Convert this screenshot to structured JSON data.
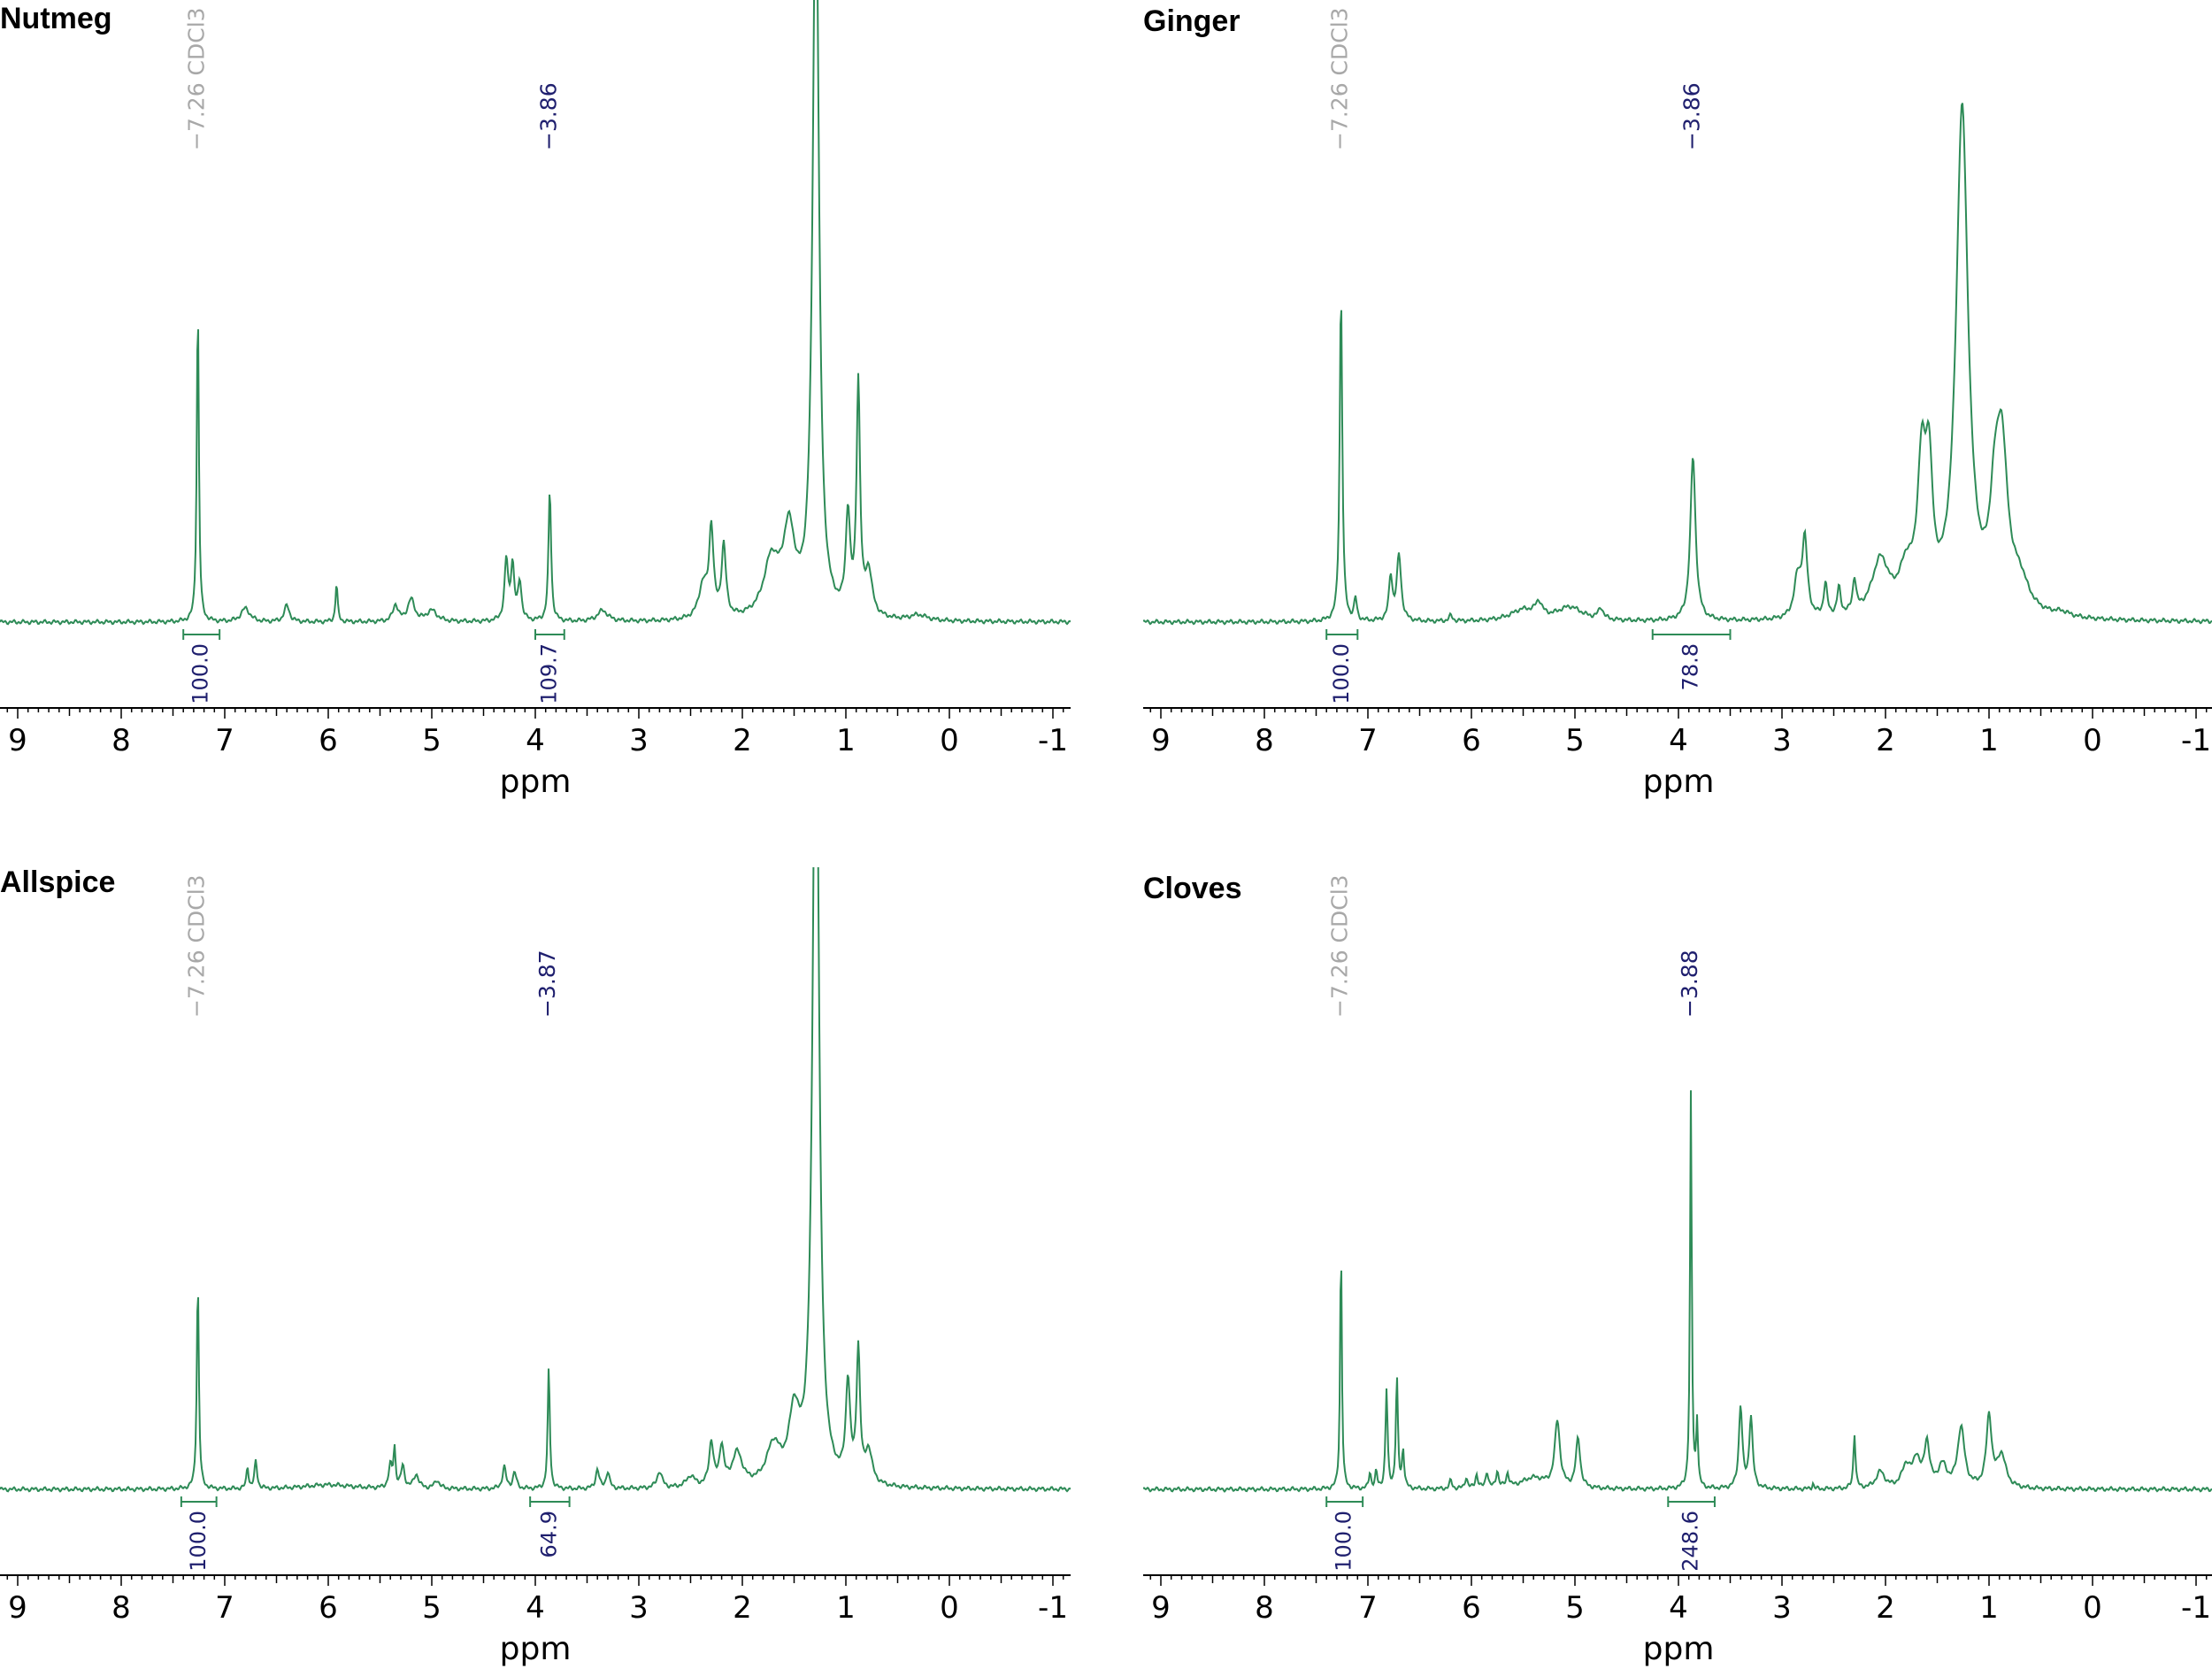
{
  "colors": {
    "spectrum": "#2e8b57",
    "integral": "#2e8b57",
    "peak_label": "#1f1f6e",
    "solvent_label": "#a8a8a8",
    "axis": "#000000"
  },
  "chart_data": [
    {
      "type": "line",
      "title": "Nutmeg",
      "xlabel": "ppm",
      "ylabel": "",
      "xlim": [
        9.2,
        -1.2
      ],
      "x_reversed": true,
      "xticks": [
        9,
        8,
        7,
        6,
        5,
        4,
        3,
        2,
        1,
        0,
        -1
      ],
      "peak_labels": [
        {
          "ppm": 7.26,
          "text": "−7.26 CDCl3",
          "kind": "solvent"
        },
        {
          "ppm": 3.86,
          "text": "−3.86",
          "kind": "peak"
        }
      ],
      "integrals": [
        {
          "from": 7.4,
          "to": 7.05,
          "value": "100.0"
        },
        {
          "from": 4.0,
          "to": 3.72,
          "value": "109.7"
        }
      ],
      "series": [
        {
          "peaks": [
            {
              "ppm": 7.26,
              "h": 0.58,
              "w": 0.012
            },
            {
              "ppm": 6.8,
              "h": 0.025,
              "w": 0.05
            },
            {
              "ppm": 6.4,
              "h": 0.03,
              "w": 0.03
            },
            {
              "ppm": 5.92,
              "h": 0.07,
              "w": 0.012
            },
            {
              "ppm": 5.35,
              "h": 0.03,
              "w": 0.03
            },
            {
              "ppm": 5.2,
              "h": 0.04,
              "w": 0.04
            },
            {
              "ppm": 5.0,
              "h": 0.02,
              "w": 0.06
            },
            {
              "ppm": 4.28,
              "h": 0.11,
              "w": 0.02
            },
            {
              "ppm": 4.22,
              "h": 0.1,
              "w": 0.02
            },
            {
              "ppm": 4.15,
              "h": 0.07,
              "w": 0.02
            },
            {
              "ppm": 3.86,
              "h": 0.24,
              "w": 0.015
            },
            {
              "ppm": 3.35,
              "h": 0.02,
              "w": 0.06
            },
            {
              "ppm": 2.38,
              "h": 0.06,
              "w": 0.05
            },
            {
              "ppm": 2.3,
              "h": 0.16,
              "w": 0.025
            },
            {
              "ppm": 2.18,
              "h": 0.13,
              "w": 0.025
            },
            {
              "ppm": 1.72,
              "h": 0.1,
              "w": 0.09
            },
            {
              "ppm": 1.55,
              "h": 0.15,
              "w": 0.07
            },
            {
              "ppm": 1.29,
              "h": 1.4,
              "w": 0.035
            },
            {
              "ppm": 0.98,
              "h": 0.18,
              "w": 0.025
            },
            {
              "ppm": 0.88,
              "h": 0.42,
              "w": 0.02
            },
            {
              "ppm": 0.78,
              "h": 0.08,
              "w": 0.04
            },
            {
              "ppm": 0.3,
              "h": 0.01,
              "w": 0.1
            }
          ]
        }
      ]
    },
    {
      "type": "line",
      "title": "Ginger",
      "xlabel": "ppm",
      "ylabel": "",
      "xlim": [
        9.2,
        -1.2
      ],
      "x_reversed": true,
      "xticks": [
        9,
        8,
        7,
        6,
        5,
        4,
        3,
        2,
        1,
        0,
        -1
      ],
      "peak_labels": [
        {
          "ppm": 7.26,
          "text": "−7.26 CDCl3",
          "kind": "solvent"
        },
        {
          "ppm": 3.86,
          "text": "−3.86",
          "kind": "peak"
        }
      ],
      "integrals": [
        {
          "from": 7.4,
          "to": 7.1,
          "value": "100.0"
        },
        {
          "from": 4.25,
          "to": 3.5,
          "value": "78.8"
        }
      ],
      "series": [
        {
          "peaks": [
            {
              "ppm": 7.26,
              "h": 0.6,
              "w": 0.015
            },
            {
              "ppm": 7.12,
              "h": 0.04,
              "w": 0.015
            },
            {
              "ppm": 6.78,
              "h": 0.08,
              "w": 0.02
            },
            {
              "ppm": 6.7,
              "h": 0.12,
              "w": 0.025
            },
            {
              "ppm": 6.2,
              "h": 0.01,
              "w": 0.02
            },
            {
              "ppm": 5.5,
              "h": 0.02,
              "w": 0.15
            },
            {
              "ppm": 5.35,
              "h": 0.025,
              "w": 0.04
            },
            {
              "ppm": 5.05,
              "h": 0.025,
              "w": 0.15
            },
            {
              "ppm": 4.75,
              "h": 0.02,
              "w": 0.03
            },
            {
              "ppm": 3.86,
              "h": 0.3,
              "w": 0.03
            },
            {
              "ppm": 2.85,
              "h": 0.07,
              "w": 0.04
            },
            {
              "ppm": 2.78,
              "h": 0.14,
              "w": 0.03
            },
            {
              "ppm": 2.58,
              "h": 0.06,
              "w": 0.02
            },
            {
              "ppm": 2.45,
              "h": 0.05,
              "w": 0.02
            },
            {
              "ppm": 2.3,
              "h": 0.06,
              "w": 0.02
            },
            {
              "ppm": 2.05,
              "h": 0.1,
              "w": 0.1
            },
            {
              "ppm": 1.8,
              "h": 0.07,
              "w": 0.08
            },
            {
              "ppm": 1.65,
              "h": 0.25,
              "w": 0.05
            },
            {
              "ppm": 1.58,
              "h": 0.22,
              "w": 0.04
            },
            {
              "ppm": 1.26,
              "h": 0.92,
              "w": 0.07
            },
            {
              "ppm": 0.95,
              "h": 0.12,
              "w": 0.05
            },
            {
              "ppm": 0.88,
              "h": 0.3,
              "w": 0.07
            },
            {
              "ppm": 0.7,
              "h": 0.05,
              "w": 0.1
            },
            {
              "ppm": 0.3,
              "h": 0.008,
              "w": 0.1
            }
          ]
        }
      ]
    },
    {
      "type": "line",
      "title": "Allspice",
      "xlabel": "ppm",
      "ylabel": "",
      "xlim": [
        9.2,
        -1.2
      ],
      "x_reversed": true,
      "xticks": [
        9,
        8,
        7,
        6,
        5,
        4,
        3,
        2,
        1,
        0,
        -1
      ],
      "peak_labels": [
        {
          "ppm": 7.26,
          "text": "−7.26 CDCl3",
          "kind": "solvent"
        },
        {
          "ppm": 3.87,
          "text": "−3.87",
          "kind": "peak"
        }
      ],
      "integrals": [
        {
          "from": 7.42,
          "to": 7.08,
          "value": "100.0"
        },
        {
          "from": 4.05,
          "to": 3.67,
          "value": "64.9"
        }
      ],
      "series": [
        {
          "peaks": [
            {
              "ppm": 7.26,
              "h": 0.38,
              "w": 0.012
            },
            {
              "ppm": 6.78,
              "h": 0.04,
              "w": 0.012
            },
            {
              "ppm": 6.7,
              "h": 0.05,
              "w": 0.015
            },
            {
              "ppm": 6.0,
              "h": 0.008,
              "w": 0.3
            },
            {
              "ppm": 5.4,
              "h": 0.04,
              "w": 0.02
            },
            {
              "ppm": 5.36,
              "h": 0.07,
              "w": 0.012
            },
            {
              "ppm": 5.28,
              "h": 0.04,
              "w": 0.02
            },
            {
              "ppm": 5.15,
              "h": 0.025,
              "w": 0.03
            },
            {
              "ppm": 4.95,
              "h": 0.015,
              "w": 0.03
            },
            {
              "ppm": 4.3,
              "h": 0.04,
              "w": 0.02
            },
            {
              "ppm": 4.2,
              "h": 0.03,
              "w": 0.02
            },
            {
              "ppm": 3.87,
              "h": 0.22,
              "w": 0.012
            },
            {
              "ppm": 3.4,
              "h": 0.035,
              "w": 0.02
            },
            {
              "ppm": 3.3,
              "h": 0.03,
              "w": 0.02
            },
            {
              "ppm": 2.8,
              "h": 0.03,
              "w": 0.03
            },
            {
              "ppm": 2.5,
              "h": 0.02,
              "w": 0.05
            },
            {
              "ppm": 2.3,
              "h": 0.08,
              "w": 0.025
            },
            {
              "ppm": 2.2,
              "h": 0.07,
              "w": 0.025
            },
            {
              "ppm": 2.05,
              "h": 0.06,
              "w": 0.06
            },
            {
              "ppm": 1.7,
              "h": 0.07,
              "w": 0.08
            },
            {
              "ppm": 1.5,
              "h": 0.12,
              "w": 0.06
            },
            {
              "ppm": 1.29,
              "h": 1.6,
              "w": 0.035
            },
            {
              "ppm": 0.98,
              "h": 0.18,
              "w": 0.025
            },
            {
              "ppm": 0.88,
              "h": 0.24,
              "w": 0.02
            },
            {
              "ppm": 0.78,
              "h": 0.06,
              "w": 0.04
            }
          ]
        }
      ]
    },
    {
      "type": "line",
      "title": "Cloves",
      "xlabel": "ppm",
      "ylabel": "",
      "xlim": [
        9.2,
        -1.2
      ],
      "x_reversed": true,
      "xticks": [
        9,
        8,
        7,
        6,
        5,
        4,
        3,
        2,
        1,
        0,
        -1
      ],
      "peak_labels": [
        {
          "ppm": 7.26,
          "text": "−7.26 CDCl3",
          "kind": "solvent"
        },
        {
          "ppm": 3.88,
          "text": "−3.88",
          "kind": "peak"
        }
      ],
      "integrals": [
        {
          "from": 7.4,
          "to": 7.05,
          "value": "100.0"
        },
        {
          "from": 4.1,
          "to": 3.65,
          "value": "248.6"
        }
      ],
      "series": [
        {
          "peaks": [
            {
              "ppm": 7.26,
              "h": 0.45,
              "w": 0.01
            },
            {
              "ppm": 6.98,
              "h": 0.03,
              "w": 0.012
            },
            {
              "ppm": 6.92,
              "h": 0.03,
              "w": 0.012
            },
            {
              "ppm": 6.82,
              "h": 0.18,
              "w": 0.012
            },
            {
              "ppm": 6.72,
              "h": 0.2,
              "w": 0.012
            },
            {
              "ppm": 6.66,
              "h": 0.07,
              "w": 0.012
            },
            {
              "ppm": 6.2,
              "h": 0.015,
              "w": 0.015
            },
            {
              "ppm": 6.05,
              "h": 0.02,
              "w": 0.015
            },
            {
              "ppm": 5.95,
              "h": 0.025,
              "w": 0.015
            },
            {
              "ppm": 5.85,
              "h": 0.03,
              "w": 0.015
            },
            {
              "ppm": 5.75,
              "h": 0.03,
              "w": 0.015
            },
            {
              "ppm": 5.65,
              "h": 0.025,
              "w": 0.015
            },
            {
              "ppm": 5.4,
              "h": 0.02,
              "w": 0.15
            },
            {
              "ppm": 5.17,
              "h": 0.12,
              "w": 0.03
            },
            {
              "ppm": 4.97,
              "h": 0.09,
              "w": 0.025
            },
            {
              "ppm": 3.88,
              "h": 0.72,
              "w": 0.01
            },
            {
              "ppm": 3.82,
              "h": 0.12,
              "w": 0.01
            },
            {
              "ppm": 3.4,
              "h": 0.15,
              "w": 0.02
            },
            {
              "ppm": 3.3,
              "h": 0.13,
              "w": 0.02
            },
            {
              "ppm": 2.7,
              "h": 0.01,
              "w": 0.01
            },
            {
              "ppm": 2.3,
              "h": 0.1,
              "w": 0.012
            },
            {
              "ppm": 2.05,
              "h": 0.03,
              "w": 0.05
            },
            {
              "ppm": 1.8,
              "h": 0.04,
              "w": 0.05
            },
            {
              "ppm": 1.7,
              "h": 0.05,
              "w": 0.04
            },
            {
              "ppm": 1.6,
              "h": 0.08,
              "w": 0.03
            },
            {
              "ppm": 1.45,
              "h": 0.04,
              "w": 0.05
            },
            {
              "ppm": 1.27,
              "h": 0.11,
              "w": 0.04
            },
            {
              "ppm": 1.0,
              "h": 0.13,
              "w": 0.03
            },
            {
              "ppm": 0.88,
              "h": 0.06,
              "w": 0.05
            }
          ]
        }
      ]
    }
  ]
}
